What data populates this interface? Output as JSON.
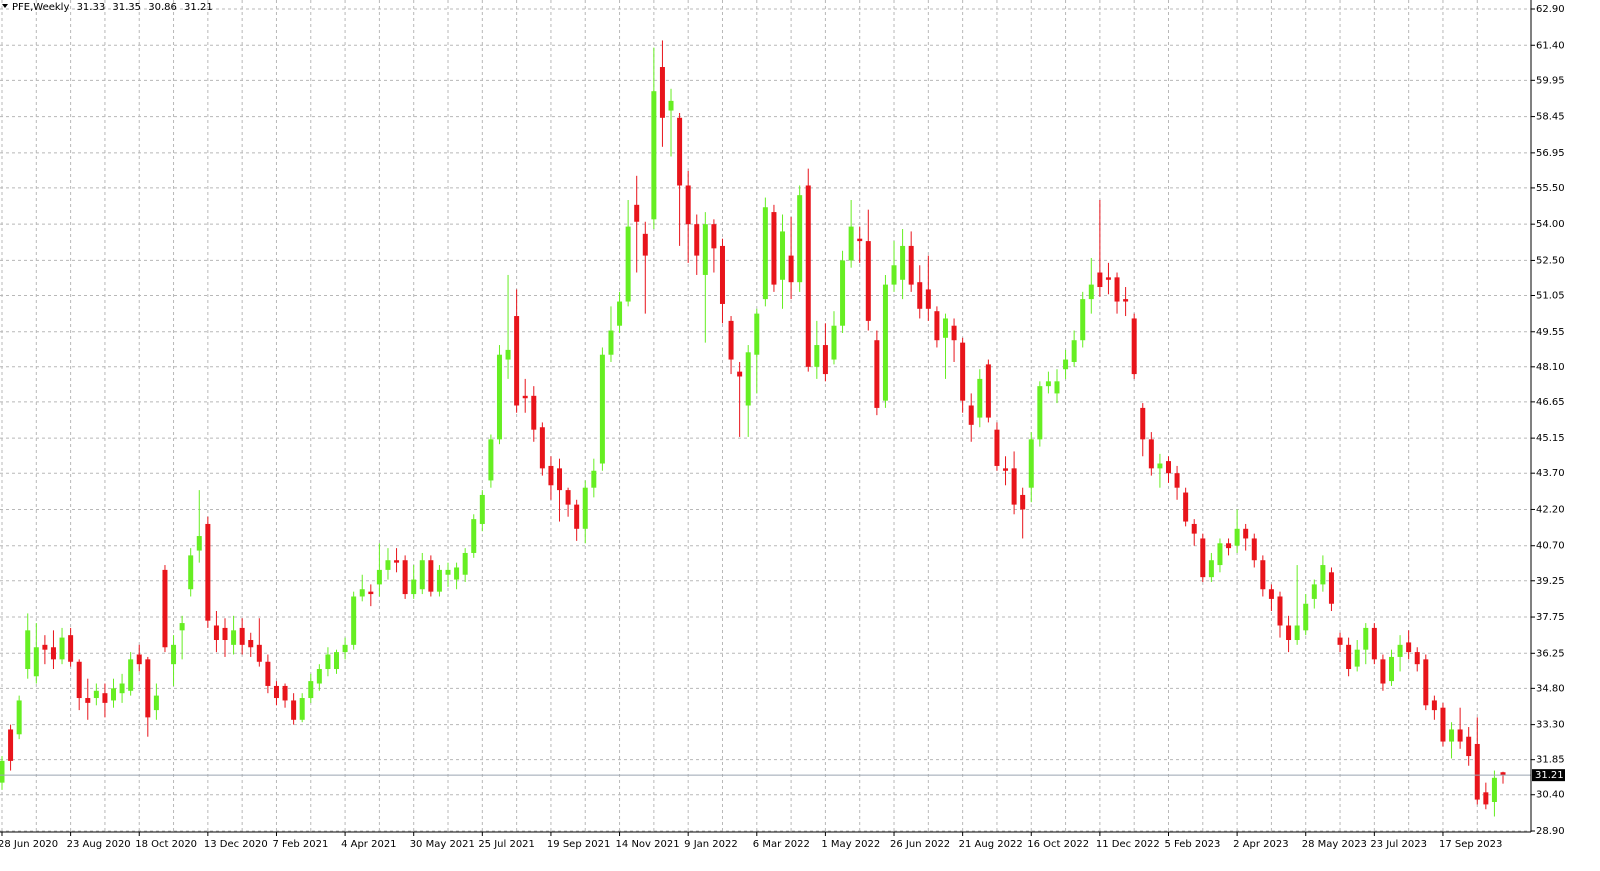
{
  "chart_data": {
    "type": "candlestick",
    "title": "PFE,Weekly",
    "up_color": "#66ee22",
    "down_color": "#e8141b",
    "grid": true,
    "ylim": [
      28.9,
      62.9
    ],
    "yticks": [
      {
        "value": 62.9,
        "label": "62.90"
      },
      {
        "value": 61.4,
        "label": "61.40"
      },
      59.95,
      58.45,
      56.95,
      {
        "value": 55.5,
        "label": "55.50"
      },
      {
        "value": 54,
        "label": "54.00"
      },
      {
        "value": 52.5,
        "label": "52.50"
      },
      51.05,
      49.55,
      {
        "value": 48.1,
        "label": "48.10"
      },
      46.65,
      45.15,
      {
        "value": 43.7,
        "label": "43.70"
      },
      {
        "value": 42.2,
        "label": "42.20"
      },
      {
        "value": 40.7,
        "label": "40.70"
      },
      39.25,
      37.75,
      36.25,
      {
        "value": 34.8,
        "label": "34.80"
      },
      {
        "value": 33.3,
        "label": "33.30"
      },
      31.85,
      {
        "value": 30.4,
        "label": "30.40"
      },
      {
        "value": 28.9,
        "label": "28.90"
      }
    ],
    "categories": [
      "28 Jun 2020",
      null,
      null,
      null,
      null,
      null,
      null,
      null,
      "23 Aug 2020",
      null,
      null,
      null,
      null,
      null,
      null,
      null,
      "18 Oct 2020",
      null,
      null,
      null,
      null,
      null,
      null,
      null,
      "13 Dec 2020",
      null,
      null,
      null,
      null,
      null,
      null,
      null,
      "7 Feb 2021",
      null,
      null,
      null,
      null,
      null,
      null,
      null,
      "4 Apr 2021",
      null,
      null,
      null,
      null,
      null,
      null,
      null,
      "30 May 2021",
      null,
      null,
      null,
      null,
      null,
      null,
      null,
      "25 Jul 2021",
      null,
      null,
      null,
      null,
      null,
      null,
      null,
      "19 Sep 2021",
      null,
      null,
      null,
      null,
      null,
      null,
      null,
      "14 Nov 2021",
      null,
      null,
      null,
      null,
      null,
      null,
      null,
      "9 Jan 2022",
      null,
      null,
      null,
      null,
      null,
      null,
      null,
      "6 Mar 2022",
      null,
      null,
      null,
      null,
      null,
      null,
      null,
      "1 May 2022",
      null,
      null,
      null,
      null,
      null,
      null,
      null,
      "26 Jun 2022",
      null,
      null,
      null,
      null,
      null,
      null,
      null,
      "21 Aug 2022",
      null,
      null,
      null,
      null,
      null,
      null,
      null,
      "16 Oct 2022",
      null,
      null,
      null,
      null,
      null,
      null,
      null,
      "11 Dec 2022",
      null,
      null,
      null,
      null,
      null,
      null,
      null,
      "5 Feb 2023",
      null,
      null,
      null,
      null,
      null,
      null,
      null,
      "2 Apr 2023",
      null,
      null,
      null,
      null,
      null,
      null,
      null,
      "28 May 2023",
      null,
      null,
      null,
      null,
      null,
      null,
      null,
      "23 Jul 2023",
      null,
      null,
      null,
      null,
      null,
      null,
      null,
      "17 Sep 2023",
      null,
      null,
      null,
      null,
      null,
      null,
      null
    ],
    "open": [
      30.9,
      33.1,
      32.9,
      35.6,
      35.3,
      36.6,
      36.5,
      36.0,
      37.0,
      35.9,
      34.4,
      34.4,
      34.6,
      34.3,
      34.6,
      34.7,
      36.2,
      36.0,
      33.9,
      39.7,
      35.8,
      37.2,
      38.9,
      40.5,
      41.6,
      37.4,
      37.3,
      36.6,
      37.3,
      36.8,
      36.6,
      35.9,
      34.9,
      34.9,
      34.3,
      33.5,
      34.4,
      35.0,
      35.6,
      35.6,
      36.3,
      36.6,
      38.6,
      38.8,
      39.1,
      39.7,
      40.1,
      40.1,
      38.7,
      38.9,
      40.1,
      38.8,
      39.5,
      39.3,
      39.5,
      40.4,
      41.6,
      43.4,
      45.1,
      48.4,
      50.2,
      46.9,
      46.9,
      45.6,
      44.0,
      43.9,
      43.0,
      42.4,
      41.4,
      43.1,
      44.1,
      48.6,
      49.8,
      50.8,
      54.8,
      53.6,
      54.2,
      60.5,
      58.7,
      58.4,
      55.6,
      54.0,
      51.9,
      54.0,
      53.1,
      50.0,
      47.9,
      46.5,
      48.6,
      50.9,
      54.5,
      51.7,
      52.7,
      51.6,
      55.6,
      48.1,
      49.0,
      48.4,
      49.8,
      52.5,
      53.4,
      53.3,
      49.2,
      46.7,
      51.5,
      51.7,
      53.1,
      51.6,
      51.3,
      50.4,
      49.3,
      49.8,
      49.1,
      46.5,
      46.0,
      48.2,
      45.5,
      43.9,
      43.9,
      42.8,
      43.1,
      45.1,
      47.3,
      47.0,
      48.0,
      48.3,
      49.2,
      50.9,
      52.0,
      51.8,
      51.8,
      50.9,
      50.1,
      46.4,
      45.1,
      43.9,
      44.2,
      43.7,
      42.9,
      41.6,
      41.0,
      39.4,
      39.9,
      40.8,
      40.7,
      41.4,
      41.0,
      40.1,
      38.9,
      38.6,
      37.4,
      36.8,
      37.2,
      38.5,
      39.1,
      39.6,
      36.9,
      36.6,
      35.7,
      36.4,
      37.3,
      36.0,
      35.1,
      36.1,
      36.7,
      36.3,
      36.0,
      34.3,
      34.0,
      32.6,
      33.1,
      32.8,
      32.5,
      30.5,
      30.1,
      31.33
    ],
    "high": [
      32.0,
      33.3,
      34.5,
      37.9,
      37.5,
      37.0,
      37.2,
      37.3,
      37.3,
      36.0,
      35.2,
      35.0,
      35.0,
      35.2,
      35.4,
      36.3,
      36.6,
      36.1,
      35.0,
      39.9,
      37.0,
      37.8,
      40.6,
      43.0,
      41.9,
      38.0,
      37.7,
      37.8,
      37.7,
      37.1,
      37.7,
      36.2,
      35.1,
      35.0,
      34.6,
      34.6,
      35.4,
      35.8,
      36.5,
      36.4,
      36.9,
      38.8,
      39.5,
      39.1,
      40.8,
      40.6,
      40.6,
      40.3,
      39.9,
      40.4,
      40.3,
      39.9,
      40.0,
      40.0,
      40.6,
      42.0,
      43.0,
      45.3,
      49.0,
      51.9,
      51.3,
      47.6,
      47.3,
      45.8,
      44.4,
      44.3,
      43.1,
      42.6,
      43.4,
      44.3,
      48.9,
      50.6,
      51.2,
      55.0,
      56.0,
      54.1,
      61.3,
      61.6,
      59.6,
      58.6,
      56.2,
      54.4,
      54.5,
      54.2,
      53.4,
      50.2,
      48.3,
      49.0,
      50.5,
      55.1,
      54.8,
      54.4,
      54.3,
      55.6,
      56.3,
      50.0,
      49.9,
      50.4,
      52.9,
      55.0,
      53.9,
      54.6,
      49.6,
      51.9,
      53.3,
      53.8,
      53.7,
      52.3,
      52.7,
      50.6,
      50.3,
      50.1,
      49.3,
      47.0,
      48.0,
      48.4,
      45.8,
      44.4,
      44.6,
      43.1,
      45.4,
      47.5,
      47.9,
      48.0,
      48.8,
      49.6,
      51.2,
      52.6,
      55.0,
      52.4,
      52.0,
      51.4,
      50.3,
      46.6,
      45.4,
      44.5,
      44.4,
      44.0,
      43.1,
      41.8,
      41.2,
      40.4,
      41.0,
      41.0,
      42.2,
      41.6,
      41.2,
      40.3,
      39.1,
      38.8,
      37.8,
      39.9,
      38.7,
      39.3,
      40.3,
      39.8,
      37.1,
      36.9,
      36.8,
      37.5,
      37.5,
      36.2,
      36.4,
      37.0,
      37.2,
      36.5,
      36.2,
      34.5,
      34.2,
      33.4,
      34.0,
      33.2,
      33.6,
      30.9,
      31.4,
      31.35
    ],
    "low": [
      30.6,
      31.4,
      32.7,
      35.2,
      35.0,
      35.8,
      35.6,
      35.8,
      35.7,
      33.9,
      33.5,
      34.1,
      33.6,
      34.0,
      34.2,
      34.5,
      35.5,
      32.8,
      33.5,
      36.3,
      34.9,
      36.0,
      38.6,
      40.0,
      37.3,
      36.3,
      36.1,
      36.2,
      36.2,
      36.1,
      35.7,
      34.6,
      34.1,
      34.0,
      33.3,
      33.4,
      34.2,
      34.7,
      35.3,
      35.4,
      36.0,
      36.4,
      38.4,
      38.2,
      38.6,
      39.3,
      39.6,
      38.5,
      38.5,
      38.7,
      38.6,
      38.6,
      39.0,
      38.9,
      39.2,
      40.2,
      41.3,
      43.1,
      44.9,
      47.6,
      46.2,
      46.2,
      45.0,
      43.6,
      42.6,
      41.7,
      41.9,
      40.9,
      40.8,
      42.7,
      43.8,
      48.3,
      49.5,
      50.6,
      52.0,
      50.3,
      53.8,
      57.2,
      56.8,
      53.1,
      52.4,
      51.9,
      49.1,
      52.0,
      49.9,
      47.8,
      45.2,
      45.2,
      47.0,
      50.6,
      51.2,
      50.5,
      50.9,
      51.2,
      47.9,
      47.6,
      47.5,
      48.2,
      49.5,
      52.2,
      52.4,
      49.6,
      46.1,
      46.4,
      51.2,
      50.9,
      51.2,
      50.1,
      50.0,
      48.9,
      47.6,
      48.3,
      46.2,
      45.0,
      45.6,
      45.8,
      43.8,
      43.2,
      42.0,
      41.0,
      42.5,
      44.8,
      47.0,
      46.6,
      47.6,
      48.1,
      48.9,
      50.3,
      51.0,
      51.1,
      50.3,
      50.2,
      47.6,
      44.4,
      43.6,
      43.1,
      43.3,
      42.6,
      41.5,
      40.7,
      39.2,
      39.2,
      39.6,
      40.3,
      40.4,
      40.5,
      39.8,
      38.6,
      38.0,
      36.9,
      36.3,
      36.6,
      37.0,
      38.1,
      38.8,
      38.0,
      36.3,
      35.3,
      35.5,
      35.8,
      35.8,
      34.7,
      34.9,
      35.5,
      36.0,
      35.5,
      33.9,
      33.5,
      32.4,
      31.9,
      32.3,
      31.6,
      30.0,
      29.8,
      29.5,
      30.86
    ],
    "close": [
      31.8,
      31.8,
      34.3,
      37.2,
      36.5,
      36.4,
      36.0,
      36.9,
      35.9,
      34.4,
      34.2,
      34.7,
      34.2,
      34.8,
      35.0,
      36.0,
      35.8,
      33.6,
      34.5,
      36.5,
      36.6,
      37.5,
      40.3,
      41.1,
      37.6,
      36.8,
      36.8,
      37.2,
      36.6,
      36.5,
      35.9,
      34.9,
      34.4,
      34.3,
      33.5,
      34.4,
      35.1,
      35.6,
      36.2,
      36.3,
      36.6,
      38.6,
      38.9,
      38.7,
      39.7,
      40.1,
      40.0,
      38.7,
      39.3,
      40.1,
      38.8,
      39.7,
      39.7,
      39.8,
      40.4,
      41.8,
      42.8,
      45.1,
      48.6,
      48.8,
      46.5,
      46.8,
      45.5,
      43.9,
      43.2,
      43.0,
      42.4,
      41.4,
      43.1,
      43.8,
      48.6,
      49.6,
      50.8,
      53.9,
      54.1,
      52.7,
      59.5,
      58.4,
      59.1,
      55.6,
      54.0,
      52.7,
      54.0,
      53.0,
      50.7,
      48.4,
      47.7,
      48.7,
      50.3,
      54.7,
      51.5,
      53.7,
      51.6,
      55.2,
      48.1,
      49.0,
      47.8,
      49.8,
      52.5,
      53.9,
      53.3,
      50.0,
      46.4,
      51.5,
      52.3,
      53.1,
      51.5,
      50.5,
      50.5,
      49.2,
      50.1,
      49.2,
      46.7,
      45.7,
      47.6,
      46.0,
      44.0,
      43.8,
      42.4,
      42.2,
      45.1,
      47.3,
      47.5,
      47.5,
      48.4,
      49.2,
      50.9,
      51.5,
      51.4,
      51.7,
      50.8,
      50.8,
      47.8,
      45.1,
      43.9,
      44.1,
      43.7,
      43.1,
      41.7,
      41.2,
      39.4,
      40.1,
      40.8,
      40.6,
      41.4,
      41.0,
      40.1,
      38.9,
      38.5,
      37.4,
      36.8,
      37.4,
      38.3,
      39.1,
      39.9,
      38.3,
      36.6,
      35.6,
      36.4,
      37.3,
      36.0,
      35.0,
      36.1,
      36.6,
      36.3,
      35.8,
      34.1,
      33.9,
      32.6,
      33.1,
      32.6,
      32.0,
      30.2,
      30.0,
      31.1,
      31.21
    ]
  }
}
